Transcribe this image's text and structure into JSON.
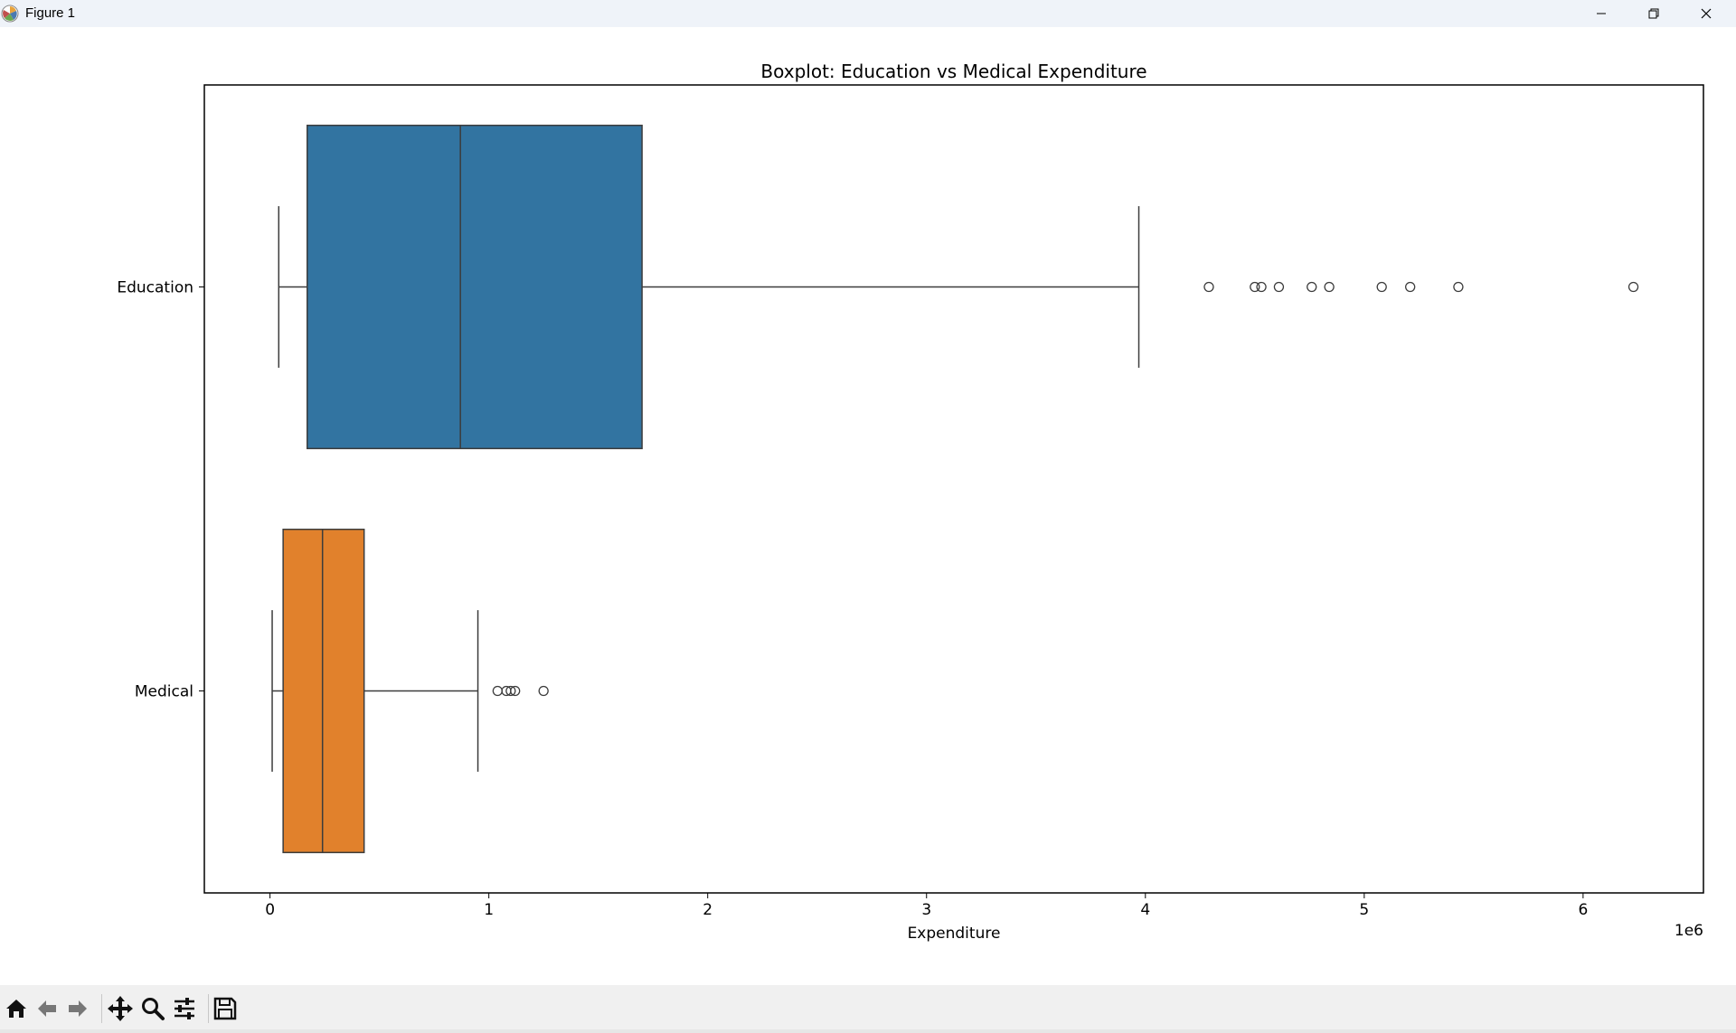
{
  "window": {
    "title": "Figure 1",
    "controls": [
      "minimize-icon",
      "restore-icon",
      "close-icon"
    ]
  },
  "toolbar": {
    "buttons": [
      "home-icon",
      "back-arrow-icon",
      "forward-arrow-icon",
      "pan-icon",
      "zoom-icon",
      "configure-subplots-icon",
      "save-icon"
    ]
  },
  "chart_data": {
    "type": "boxplot",
    "orientation": "horizontal",
    "title": "Boxplot: Education vs Medical Expenditure",
    "xlabel": "Expenditure",
    "ylabel": "",
    "x_offset_label": "1e6",
    "xlim": [
      -0.3,
      6.55
    ],
    "x_ticks": [
      0,
      1,
      2,
      3,
      4,
      5,
      6
    ],
    "x_tick_labels": [
      "0",
      "1",
      "2",
      "3",
      "4",
      "5",
      "6"
    ],
    "grid": false,
    "categories": [
      "Education",
      "Medical"
    ],
    "series": [
      {
        "category": "Education",
        "color": "#3274a1",
        "whisker_low": 0.04,
        "q1": 0.17,
        "median": 0.87,
        "q3": 1.7,
        "whisker_high": 3.97,
        "outliers": [
          4.29,
          4.5,
          4.53,
          4.61,
          4.76,
          4.84,
          5.08,
          5.21,
          5.43,
          6.23
        ]
      },
      {
        "category": "Medical",
        "color": "#e1812c",
        "whisker_low": 0.01,
        "q1": 0.06,
        "median": 0.24,
        "q3": 0.43,
        "whisker_high": 0.95,
        "outliers": [
          1.04,
          1.08,
          1.1,
          1.12,
          1.25
        ]
      }
    ]
  }
}
